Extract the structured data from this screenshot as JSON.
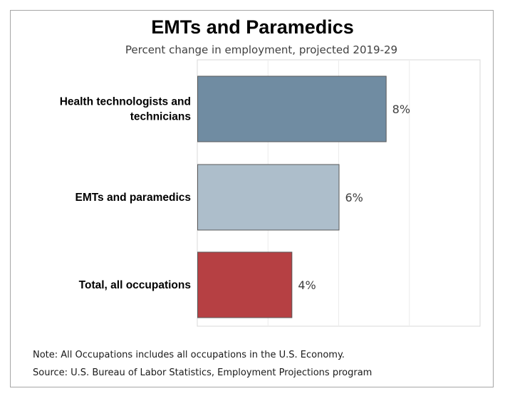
{
  "chart_data": {
    "type": "bar",
    "orientation": "horizontal",
    "title": "EMTs and Paramedics",
    "subtitle": "Percent change in employment, projected 2019-29",
    "categories": [
      [
        "Health technologists and",
        "technicians"
      ],
      [
        "EMTs and paramedics"
      ],
      [
        "Total, all occupations"
      ]
    ],
    "values": [
      8,
      6,
      4
    ],
    "data_labels": [
      "8%",
      "6%",
      "4%"
    ],
    "colors": [
      "#708ca2",
      "#adbecb",
      "#b64043"
    ],
    "xlim": [
      0,
      12
    ],
    "grid": true,
    "legend": "none"
  },
  "notes": {
    "note": "Note: All Occupations includes all occupations in the U.S. Economy.",
    "source": "Source: U.S. Bureau of Labor Statistics, Employment Projections program"
  }
}
